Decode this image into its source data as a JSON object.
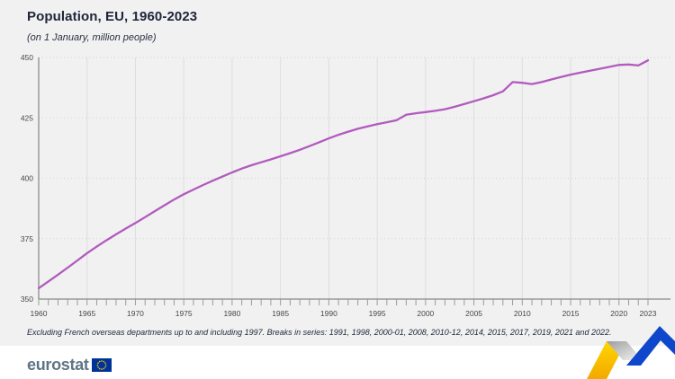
{
  "header": {
    "title": "Population, EU, 1960-2023",
    "subtitle": "(on 1 January, million people)"
  },
  "footnote": "Excluding French overseas departments up to and including 1997. Breaks in series: 1991, 1998, 2000-01, 2008, 2010-12, 2014, 2015, 2017, 2019, 2021 and 2022.",
  "footer": {
    "logo_text": "eurostat",
    "flag": {
      "blue": "#003399",
      "stars": "#ffcc00"
    }
  },
  "decoration": {
    "yellow_top": "#ffd600",
    "yellow_bottom": "#f2a900",
    "silver_dark": "#9c9c9c",
    "silver_light": "#f8f8f8",
    "blue": "#0e47cb"
  },
  "chart_data": {
    "type": "line",
    "title": "Population, EU, 1960-2023",
    "subtitle": "(on 1 January, million people)",
    "series_name": "EU population, million people",
    "x": [
      1960,
      1961,
      1962,
      1963,
      1964,
      1965,
      1966,
      1967,
      1968,
      1969,
      1970,
      1971,
      1972,
      1973,
      1974,
      1975,
      1976,
      1977,
      1978,
      1979,
      1980,
      1981,
      1982,
      1983,
      1984,
      1985,
      1986,
      1987,
      1988,
      1989,
      1990,
      1991,
      1992,
      1993,
      1994,
      1995,
      1996,
      1997,
      1998,
      1999,
      2000,
      2001,
      2002,
      2003,
      2004,
      2005,
      2006,
      2007,
      2008,
      2009,
      2010,
      2011,
      2012,
      2013,
      2014,
      2015,
      2016,
      2017,
      2018,
      2019,
      2020,
      2021,
      2022,
      2023
    ],
    "values": [
      354.5,
      357.3,
      360.1,
      363.0,
      366.0,
      369.0,
      371.7,
      374.3,
      376.8,
      379.2,
      381.5,
      383.9,
      386.4,
      388.8,
      391.2,
      393.4,
      395.3,
      397.2,
      399.0,
      400.7,
      402.4,
      404.0,
      405.4,
      406.6,
      407.8,
      409.1,
      410.4,
      411.8,
      413.3,
      414.9,
      416.5,
      418.0,
      419.3,
      420.5,
      421.5,
      422.4,
      423.2,
      424.0,
      426.3,
      426.9,
      427.4,
      427.9,
      428.6,
      429.6,
      430.7,
      431.9,
      433.1,
      434.4,
      436.0,
      439.8,
      439.5,
      439.0,
      439.8,
      440.9,
      441.9,
      442.9,
      443.7,
      444.5,
      445.3,
      446.1,
      446.9,
      447.1,
      446.7,
      448.8
    ],
    "ylim": [
      350,
      450
    ],
    "yticks": [
      350,
      375,
      400,
      425,
      450
    ],
    "xticks": [
      1960,
      1965,
      1970,
      1975,
      1980,
      1985,
      1990,
      1995,
      2000,
      2005,
      2010,
      2015,
      2020,
      2023
    ],
    "xlabel": "",
    "ylabel": "",
    "legend": "none",
    "grid": "horizontal dotted, vertical solid light",
    "line_color": "#b25abe",
    "axis_color": "#6e6e6e",
    "tick_color": "#9a9a9a",
    "vgrid_color": "#dedede",
    "hgrid_color": "#d4d4d4",
    "label_color": "#474747"
  }
}
